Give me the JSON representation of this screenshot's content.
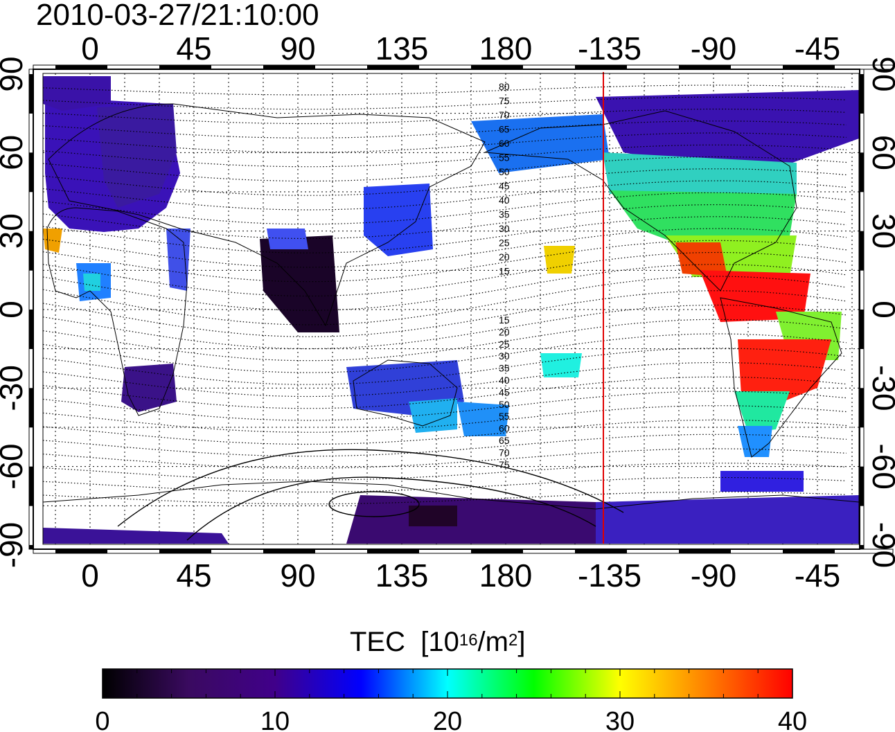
{
  "title": "2010-03-27/21:10:00",
  "map": {
    "lon_ticks": [
      0,
      45,
      90,
      135,
      180,
      -135,
      -90,
      -45
    ],
    "lat_ticks_left": [
      90,
      60,
      30,
      0,
      -30,
      -60,
      -90
    ],
    "lat_ticks_right": [
      90,
      60,
      30,
      0,
      -30,
      -60,
      -90
    ],
    "contour_labels": [
      "80",
      "75",
      "70",
      "65",
      "60",
      "55",
      "50",
      "45",
      "40",
      "35",
      "30",
      "25",
      "20",
      "15",
      "15",
      "20",
      "25",
      "30",
      "35",
      "40",
      "45",
      "50",
      "55",
      "60",
      "65",
      "70",
      "75"
    ],
    "terminator_line_color": "#e00000"
  },
  "colorbar": {
    "title_main": "TEC",
    "title_unit_pre": "[10",
    "title_exp": "16",
    "title_unit_mid": "/m",
    "title_exp2": "2",
    "title_unit_post": "]",
    "ticks": [
      0,
      10,
      20,
      30,
      40
    ],
    "range": [
      0,
      40
    ],
    "colors": [
      "#000000",
      "#3a0a60",
      "#40008a",
      "#0000ff",
      "#00ffff",
      "#00ff00",
      "#ffff00",
      "#ff8000",
      "#ff0000"
    ]
  }
}
